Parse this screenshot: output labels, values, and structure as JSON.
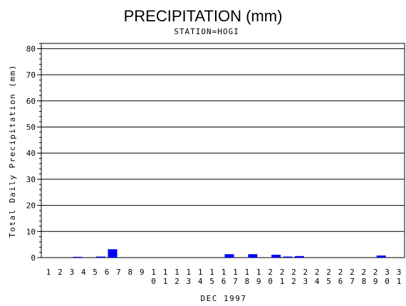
{
  "chart_data": {
    "type": "bar",
    "title": "PRECIPITATION (mm)",
    "subtitle": "STATION=HOGI",
    "xlabel": "DEC 1997",
    "ylabel": "Total Daily Precipitation (mm)",
    "categories": [
      "1",
      "2",
      "3",
      "4",
      "5",
      "6",
      "7",
      "8",
      "9",
      "10",
      "11",
      "12",
      "13",
      "14",
      "15",
      "16",
      "17",
      "18",
      "19",
      "20",
      "21",
      "22",
      "23",
      "24",
      "25",
      "26",
      "27",
      "28",
      "29",
      "30",
      "31"
    ],
    "values": [
      0,
      0,
      0.3,
      0,
      0.4,
      3.2,
      0,
      0,
      0,
      0,
      0,
      0,
      0,
      0,
      0,
      1.3,
      0,
      1.3,
      0,
      1.1,
      0.4,
      0.6,
      0,
      0,
      0,
      0,
      0,
      0,
      0.8,
      0,
      0
    ],
    "ylim": [
      0,
      82
    ],
    "yticks": [
      0,
      10,
      20,
      30,
      40,
      50,
      60,
      70,
      80
    ],
    "grid": true,
    "bar_color": "#0000ff"
  }
}
